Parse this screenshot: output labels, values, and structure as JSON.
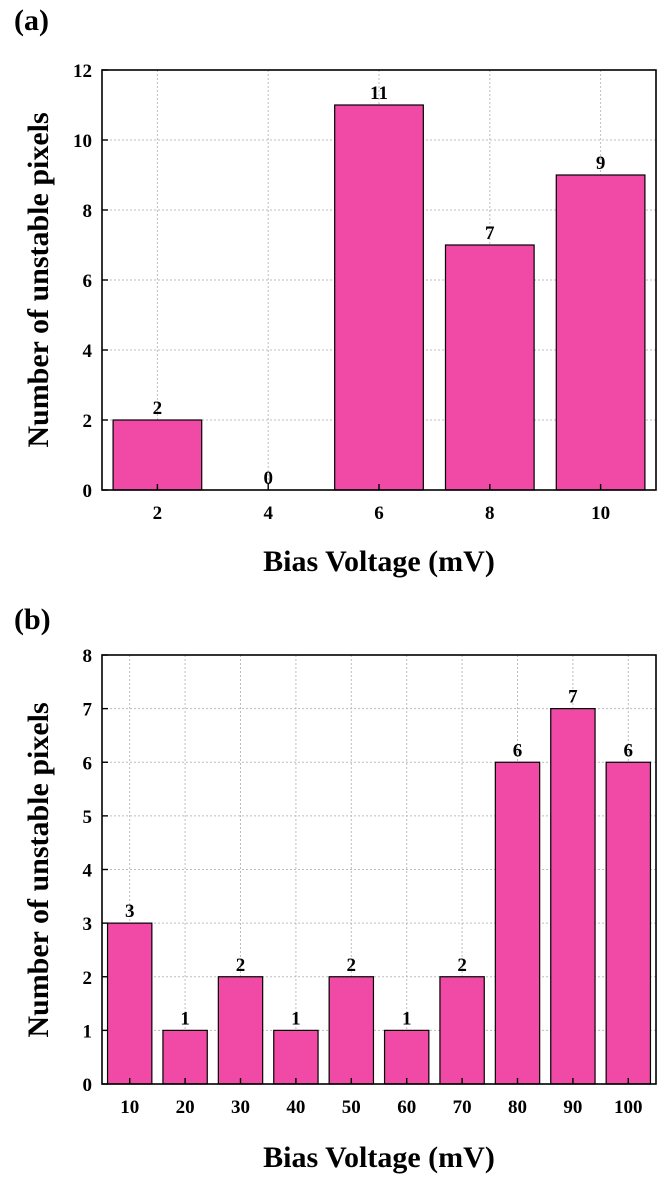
{
  "chart_data": [
    {
      "id": "a",
      "panel_label": "(a)",
      "type": "bar",
      "categories": [
        "2",
        "4",
        "6",
        "8",
        "10"
      ],
      "values": [
        2,
        0,
        11,
        7,
        9
      ],
      "data_labels": [
        "2",
        "0",
        "11",
        "7",
        "9"
      ],
      "xlabel": "Bias Voltage (mV)",
      "ylabel": "Number of unstable pixels",
      "ylim": [
        0,
        12
      ],
      "yticks": [
        0,
        2,
        4,
        6,
        8,
        10,
        12
      ],
      "grid": true,
      "bar_color": "#f04aa6"
    },
    {
      "id": "b",
      "panel_label": "(b)",
      "type": "bar",
      "categories": [
        "10",
        "20",
        "30",
        "40",
        "50",
        "60",
        "70",
        "80",
        "90",
        "100"
      ],
      "values": [
        3,
        1,
        2,
        1,
        2,
        1,
        2,
        6,
        7,
        6
      ],
      "data_labels": [
        "3",
        "1",
        "2",
        "1",
        "2",
        "1",
        "2",
        "6",
        "7",
        "6"
      ],
      "xlabel": "Bias Voltage (mV)",
      "ylabel": "Number of unstable pixels",
      "ylim": [
        0,
        8
      ],
      "yticks": [
        0,
        1,
        2,
        3,
        4,
        5,
        6,
        7,
        8
      ],
      "grid": true,
      "bar_color": "#f04aa6"
    }
  ]
}
